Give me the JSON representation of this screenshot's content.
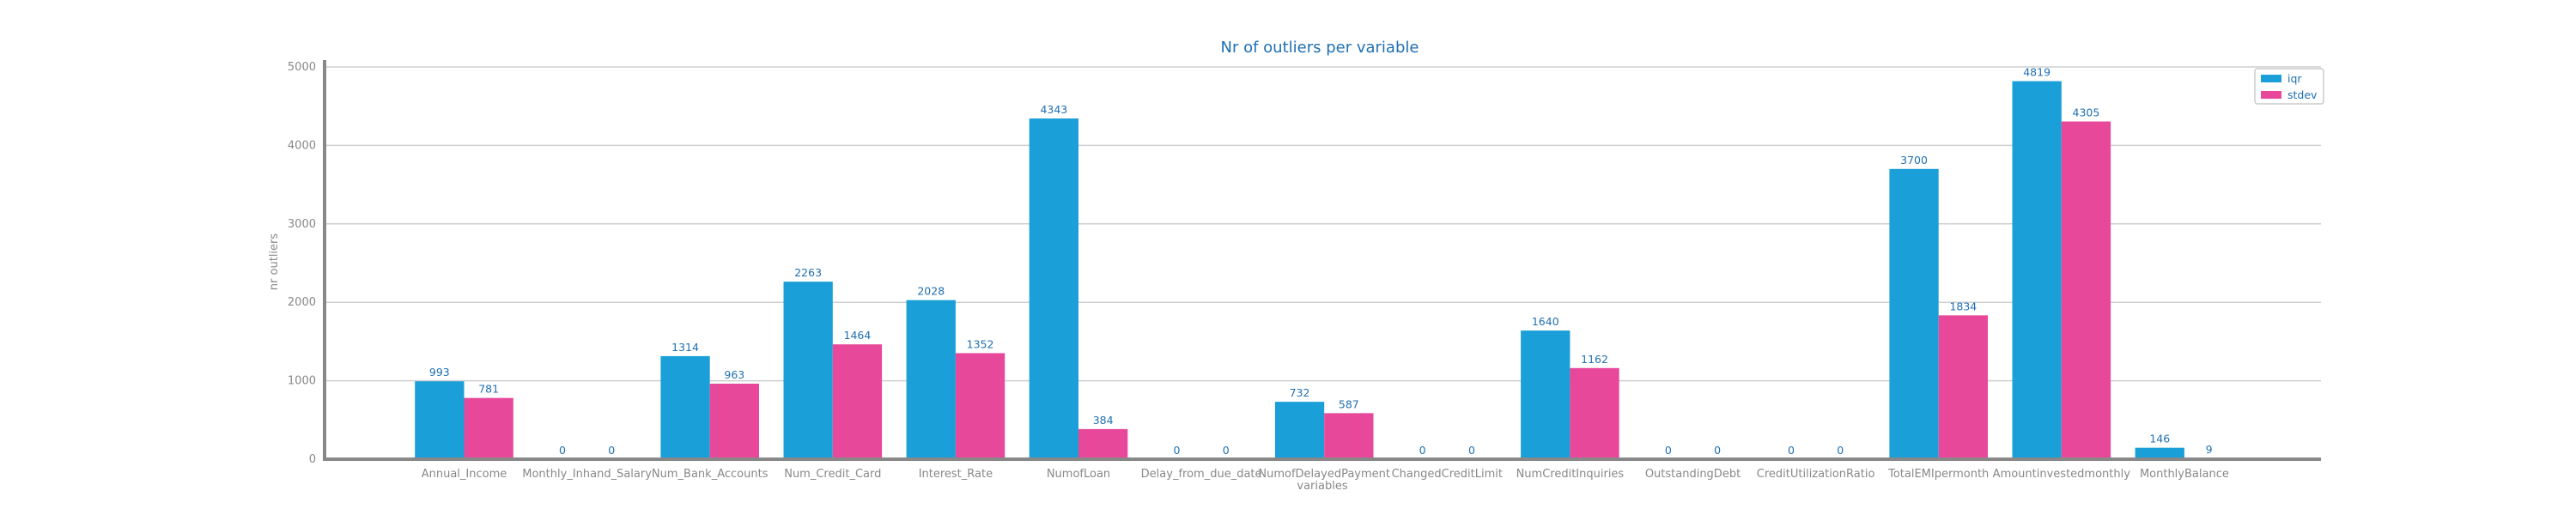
{
  "chart_data": {
    "type": "bar",
    "title": "Nr of outliers per variable",
    "xlabel": "variables",
    "ylabel": "nr outliers",
    "ylim": [
      0,
      5000
    ],
    "yticks": [
      0,
      1000,
      2000,
      3000,
      4000,
      5000
    ],
    "grid": true,
    "legend_position": "top-right",
    "categories": [
      "Annual_Income",
      "Monthly_Inhand_Salary",
      "Num_Bank_Accounts",
      "Num_Credit_Card",
      "Interest_Rate",
      "NumofLoan",
      "Delay_from_due_date",
      "NumofDelayedPayment",
      "ChangedCreditLimit",
      "NumCreditInquiries",
      "OutstandingDebt",
      "CreditUtilizationRatio",
      "TotalEMIpermonth",
      "Amountinvestedmonthly",
      "MonthlyBalance"
    ],
    "series": [
      {
        "name": "iqr",
        "color": "#1a9fd8",
        "values": [
          993,
          0,
          1314,
          2263,
          2028,
          4343,
          0,
          732,
          0,
          1640,
          0,
          0,
          3700,
          4819,
          146
        ]
      },
      {
        "name": "stdev",
        "color": "#e8489a",
        "values": [
          781,
          0,
          963,
          1464,
          1352,
          384,
          0,
          587,
          0,
          1162,
          0,
          0,
          1834,
          4305,
          9
        ]
      }
    ]
  }
}
